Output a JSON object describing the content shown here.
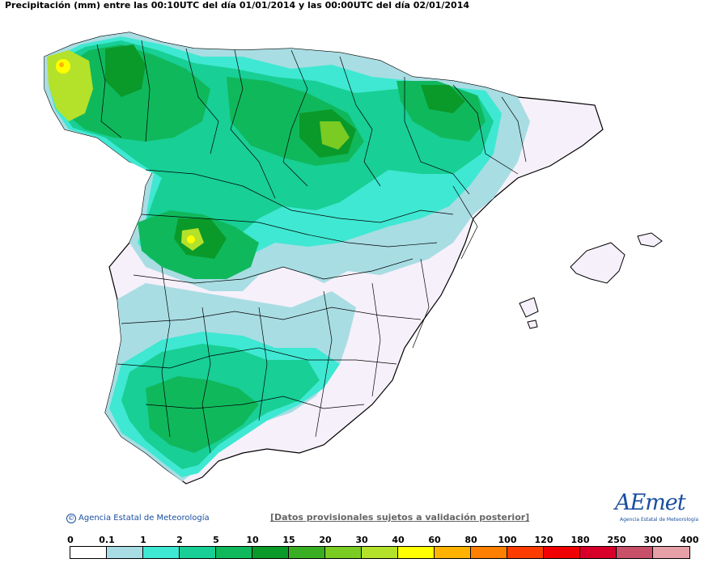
{
  "header": {
    "title": "Precipitación (mm) entre las 00:10UTC del día 01/01/2014 y las 00:00UTC del día 02/01/2014"
  },
  "footer": {
    "credit": "Agencia Estatal de Meteorología",
    "copyright_symbol": "©",
    "note": "[Datos provisionales sujetos a validación posterior]",
    "logo_text": "AEmet",
    "logo_subtitle": "Agencia Estatal de Meteorología"
  },
  "legend": {
    "labels": [
      "0",
      "0.1",
      "1",
      "2",
      "5",
      "10",
      "15",
      "20",
      "30",
      "40",
      "60",
      "80",
      "100",
      "120",
      "180",
      "250",
      "300",
      "400"
    ],
    "colors": [
      "#ffffff",
      "#a8dde3",
      "#3fe8d2",
      "#18cf95",
      "#10b85c",
      "#0a9a2a",
      "#3aae22",
      "#7acb22",
      "#b4e22a",
      "#ffff00",
      "#ffb300",
      "#ff7f00",
      "#ff3c00",
      "#f00000",
      "#d8002a",
      "#c85068",
      "#e6a0a8"
    ]
  },
  "map": {
    "background_colors": {
      "dry": "#f6f0fa",
      "light": "#a8dde3",
      "cyan": "#3fe8d2",
      "teal": "#18cf95",
      "green": "#10b85c",
      "darkgreen": "#0a9a2a",
      "lime": "#b4e22a",
      "yellow": "#ffff00"
    }
  }
}
